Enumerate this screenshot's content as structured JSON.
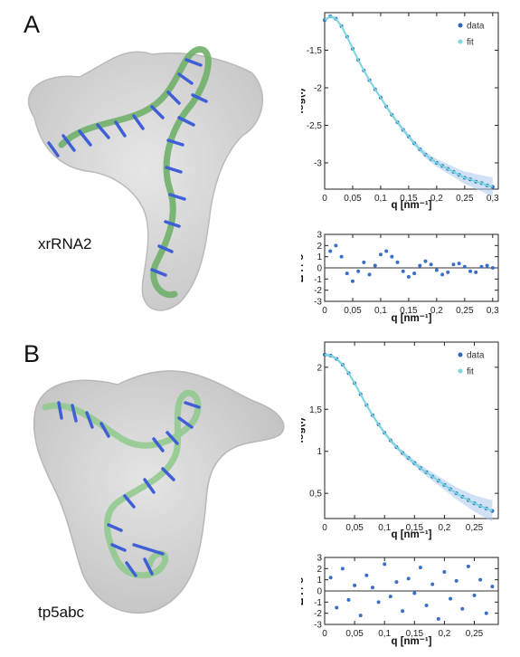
{
  "panels": [
    {
      "letter": "A",
      "molecule_label": "xrRNA2"
    },
    {
      "letter": "B",
      "molecule_label": "tp5abc"
    }
  ],
  "colors": {
    "data": "#2f66b8",
    "fit": "#7ad6df",
    "error_band": "#a9c8ec",
    "residual": "#3a6fc4",
    "envelope": "#cfcfcf",
    "backbone": "#6fb06a",
    "bases": "#3f5fd6"
  },
  "chart_data": [
    {
      "id": "A-fit",
      "type": "scatter",
      "xlabel": "q [nm⁻¹]",
      "ylabel": "log(I)",
      "xlim": [
        0,
        0.31
      ],
      "ylim": [
        -3.35,
        -1.0
      ],
      "xticks": [
        0,
        0.05,
        0.1,
        0.15,
        0.2,
        0.25,
        0.3
      ],
      "xtick_labels": [
        "0",
        "0,05",
        "0,1",
        "0,15",
        "0,2",
        "0,25",
        "0,3"
      ],
      "yticks": [
        -1.5,
        -2,
        -2.5,
        -3
      ],
      "ytick_labels": [
        "-1,5",
        "-2",
        "-2,5",
        "-3"
      ],
      "legend": [
        "data",
        "fit"
      ],
      "legend_position": "top-right",
      "series": [
        {
          "name": "data",
          "x": [
            0.0,
            0.01,
            0.02,
            0.03,
            0.04,
            0.05,
            0.06,
            0.07,
            0.08,
            0.09,
            0.1,
            0.11,
            0.12,
            0.13,
            0.14,
            0.15,
            0.16,
            0.17,
            0.18,
            0.19,
            0.2,
            0.21,
            0.22,
            0.23,
            0.24,
            0.25,
            0.26,
            0.27,
            0.28,
            0.29,
            0.3
          ],
          "y": [
            -1.1,
            -1.05,
            -1.08,
            -1.18,
            -1.32,
            -1.48,
            -1.63,
            -1.77,
            -1.9,
            -2.02,
            -2.13,
            -2.25,
            -2.36,
            -2.46,
            -2.56,
            -2.65,
            -2.74,
            -2.82,
            -2.89,
            -2.95,
            -3.0,
            -3.04,
            -3.08,
            -3.12,
            -3.16,
            -3.2,
            -3.22,
            -3.25,
            -3.27,
            -3.3,
            -3.32
          ]
        },
        {
          "name": "fit",
          "x": [
            0.0,
            0.01,
            0.02,
            0.03,
            0.04,
            0.05,
            0.06,
            0.07,
            0.08,
            0.09,
            0.1,
            0.11,
            0.12,
            0.13,
            0.14,
            0.15,
            0.16,
            0.17,
            0.18,
            0.19,
            0.2,
            0.21,
            0.22,
            0.23,
            0.24,
            0.25,
            0.26,
            0.27,
            0.28,
            0.29,
            0.3
          ],
          "y": [
            -1.1,
            -1.05,
            -1.08,
            -1.18,
            -1.32,
            -1.48,
            -1.63,
            -1.77,
            -1.9,
            -2.02,
            -2.13,
            -2.25,
            -2.36,
            -2.46,
            -2.56,
            -2.65,
            -2.74,
            -2.82,
            -2.89,
            -2.95,
            -3.0,
            -3.04,
            -3.08,
            -3.12,
            -3.16,
            -3.2,
            -3.22,
            -3.25,
            -3.27,
            -3.3,
            -3.32
          ]
        }
      ]
    },
    {
      "id": "A-residual",
      "type": "scatter",
      "xlabel": "q [nm⁻¹]",
      "ylabel": "Δ I / σ",
      "xlim": [
        0,
        0.31
      ],
      "ylim": [
        -3,
        3
      ],
      "xticks": [
        0,
        0.05,
        0.1,
        0.15,
        0.2,
        0.25,
        0.3
      ],
      "xtick_labels": [
        "0",
        "0,05",
        "0,1",
        "0,15",
        "0,2",
        "0,25",
        "0,3"
      ],
      "yticks": [
        3,
        2,
        1,
        0,
        -1,
        -2,
        -3
      ],
      "ytick_labels": [
        "3",
        "2",
        "1",
        "0",
        "-1",
        "-2",
        "-3"
      ],
      "zero_line": true,
      "series": [
        {
          "name": "residuals",
          "x": [
            0.01,
            0.02,
            0.03,
            0.04,
            0.05,
            0.06,
            0.07,
            0.08,
            0.09,
            0.1,
            0.11,
            0.12,
            0.13,
            0.14,
            0.15,
            0.16,
            0.17,
            0.18,
            0.19,
            0.2,
            0.21,
            0.22,
            0.23,
            0.24,
            0.25,
            0.26,
            0.27,
            0.28,
            0.29,
            0.3
          ],
          "y": [
            1.5,
            2.0,
            1.0,
            -0.5,
            -1.2,
            -0.3,
            0.5,
            -0.6,
            0.2,
            1.2,
            1.5,
            1.0,
            0.5,
            -0.3,
            -0.8,
            -0.5,
            0.2,
            0.6,
            0.3,
            -0.2,
            -0.6,
            -0.4,
            0.3,
            0.4,
            0.1,
            -0.3,
            -0.4,
            0.1,
            0.2,
            0.0
          ]
        }
      ]
    },
    {
      "id": "B-fit",
      "type": "scatter",
      "xlabel": "q [nm⁻¹]",
      "ylabel": "log(I)",
      "xlim": [
        0,
        0.29
      ],
      "ylim": [
        0.2,
        2.3
      ],
      "xticks": [
        0,
        0.05,
        0.1,
        0.15,
        0.2,
        0.25
      ],
      "xtick_labels": [
        "0",
        "0,05",
        "0,1",
        "0,15",
        "0,2",
        "0,25"
      ],
      "yticks": [
        2,
        1.5,
        1,
        0.5
      ],
      "ytick_labels": [
        "2",
        "1,5",
        "1",
        "0,5"
      ],
      "legend": [
        "data",
        "fit"
      ],
      "legend_position": "top-right",
      "series": [
        {
          "name": "data",
          "x": [
            0.0,
            0.01,
            0.02,
            0.03,
            0.04,
            0.05,
            0.06,
            0.07,
            0.08,
            0.09,
            0.1,
            0.11,
            0.12,
            0.13,
            0.14,
            0.15,
            0.16,
            0.17,
            0.18,
            0.19,
            0.2,
            0.21,
            0.22,
            0.23,
            0.24,
            0.25,
            0.26,
            0.27,
            0.28
          ],
          "y": [
            2.15,
            2.14,
            2.1,
            2.03,
            1.93,
            1.81,
            1.68,
            1.55,
            1.43,
            1.32,
            1.22,
            1.13,
            1.05,
            0.98,
            0.92,
            0.86,
            0.8,
            0.75,
            0.7,
            0.65,
            0.6,
            0.55,
            0.5,
            0.46,
            0.42,
            0.38,
            0.35,
            0.32,
            0.29
          ]
        },
        {
          "name": "fit",
          "x": [
            0.0,
            0.01,
            0.02,
            0.03,
            0.04,
            0.05,
            0.06,
            0.07,
            0.08,
            0.09,
            0.1,
            0.11,
            0.12,
            0.13,
            0.14,
            0.15,
            0.16,
            0.17,
            0.18,
            0.19,
            0.2,
            0.21,
            0.22,
            0.23,
            0.24,
            0.25,
            0.26,
            0.27,
            0.28
          ],
          "y": [
            2.15,
            2.14,
            2.1,
            2.03,
            1.93,
            1.81,
            1.68,
            1.55,
            1.43,
            1.32,
            1.22,
            1.13,
            1.05,
            0.98,
            0.92,
            0.86,
            0.8,
            0.75,
            0.7,
            0.65,
            0.6,
            0.55,
            0.5,
            0.46,
            0.42,
            0.38,
            0.35,
            0.32,
            0.29
          ]
        }
      ]
    },
    {
      "id": "B-residual",
      "type": "scatter",
      "xlabel": "q [nm⁻¹]",
      "ylabel": "Δ I / σ",
      "xlim": [
        0,
        0.29
      ],
      "ylim": [
        -3,
        3
      ],
      "xticks": [
        0,
        0.05,
        0.1,
        0.15,
        0.2,
        0.25
      ],
      "xtick_labels": [
        "0",
        "0,05",
        "0,1",
        "0,15",
        "0,2",
        "0,25"
      ],
      "yticks": [
        3,
        2,
        1,
        0,
        -1,
        -2,
        -3
      ],
      "ytick_labels": [
        "3",
        "2",
        "1",
        "0",
        "-1",
        "-2",
        "-3"
      ],
      "zero_line": true,
      "series": [
        {
          "name": "residuals",
          "x": [
            0.01,
            0.02,
            0.03,
            0.04,
            0.05,
            0.06,
            0.07,
            0.08,
            0.09,
            0.1,
            0.11,
            0.12,
            0.13,
            0.14,
            0.15,
            0.16,
            0.17,
            0.18,
            0.19,
            0.2,
            0.21,
            0.22,
            0.23,
            0.24,
            0.25,
            0.26,
            0.27,
            0.28
          ],
          "y": [
            1.2,
            -1.5,
            2.0,
            -0.8,
            0.5,
            -2.2,
            1.4,
            0.3,
            -1.0,
            2.4,
            -0.5,
            0.8,
            -1.8,
            1.1,
            -0.2,
            2.1,
            -1.3,
            0.6,
            -2.5,
            1.7,
            -0.7,
            0.9,
            -1.6,
            2.2,
            -0.4,
            1.0,
            -2.0,
            0.4
          ]
        }
      ]
    }
  ]
}
